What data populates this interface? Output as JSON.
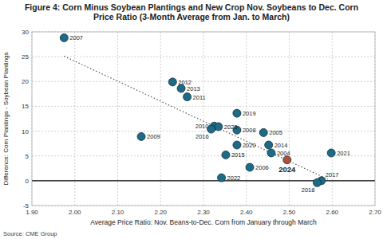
{
  "chart_data": {
    "type": "scatter",
    "title": "Figure 4: Corn Minus Soybean Plantings and New Crop Nov. Soybeans to Dec. Corn Price Ratio (3-Month Average from Jan. to March)",
    "x_label": "Average Price Ratio: Nov. Beans-to-Dec. Corn from January through March",
    "y_label": "Difference: Corn Plantings - Soybean Plantings",
    "source": "Source: CME Group",
    "labels": [
      "2007",
      "2012",
      "2013",
      "2011",
      "2019",
      "2010",
      "2023",
      "2016",
      "2008",
      "2005",
      "2009",
      "2020",
      "2014",
      "2004",
      "2015",
      "2021",
      "2024",
      "2006",
      "2022",
      "2017",
      "2018"
    ],
    "x": [
      1.975,
      2.228,
      2.248,
      2.262,
      2.378,
      2.325,
      2.335,
      2.318,
      2.378,
      2.44,
      2.155,
      2.378,
      2.452,
      2.458,
      2.352,
      2.598,
      2.495,
      2.408,
      2.342,
      2.575,
      2.565
    ],
    "values": [
      28.8,
      19.9,
      18.6,
      16.9,
      13.6,
      11.0,
      10.9,
      10.4,
      10.2,
      9.7,
      8.9,
      7.2,
      7.2,
      5.6,
      5.2,
      5.6,
      4.2,
      2.7,
      0.6,
      0.0,
      -0.4
    ],
    "colors": [
      "#1d6b86",
      "#1d6b86",
      "#1d6b86",
      "#1d6b86",
      "#1d6b86",
      "#1d6b86",
      "#1d6b86",
      "#1d6b86",
      "#1d6b86",
      "#1d6b86",
      "#1d6b86",
      "#1d6b86",
      "#1d6b86",
      "#1d6b86",
      "#1d6b86",
      "#1d6b86",
      "#b0503a",
      "#1d6b86",
      "#1d6b86",
      "#1d6b86",
      "#1d6b86"
    ],
    "marker": "circle",
    "trendline": {
      "x": [
        1.975,
        2.59
      ],
      "values": [
        25.1,
        0.3
      ],
      "line_style": "dotted"
    },
    "xlim": [
      1.9,
      2.7
    ],
    "xticks": [
      {
        "value": 1.9,
        "label": "1.90"
      },
      {
        "value": 2.0,
        "label": "2.00"
      },
      {
        "value": 2.1,
        "label": "2.10"
      },
      {
        "value": 2.2,
        "label": "2.20"
      },
      {
        "value": 2.3,
        "label": "2.30"
      },
      {
        "value": 2.4,
        "label": "2.40"
      },
      {
        "value": 2.5,
        "label": "2.50"
      },
      {
        "value": 2.6,
        "label": "2.60"
      },
      {
        "value": 2.7,
        "label": "2.70"
      }
    ],
    "ylim": [
      -5,
      30
    ],
    "yticks": [
      -5,
      0,
      5,
      10,
      15,
      20,
      25,
      30
    ],
    "grid": true
  }
}
